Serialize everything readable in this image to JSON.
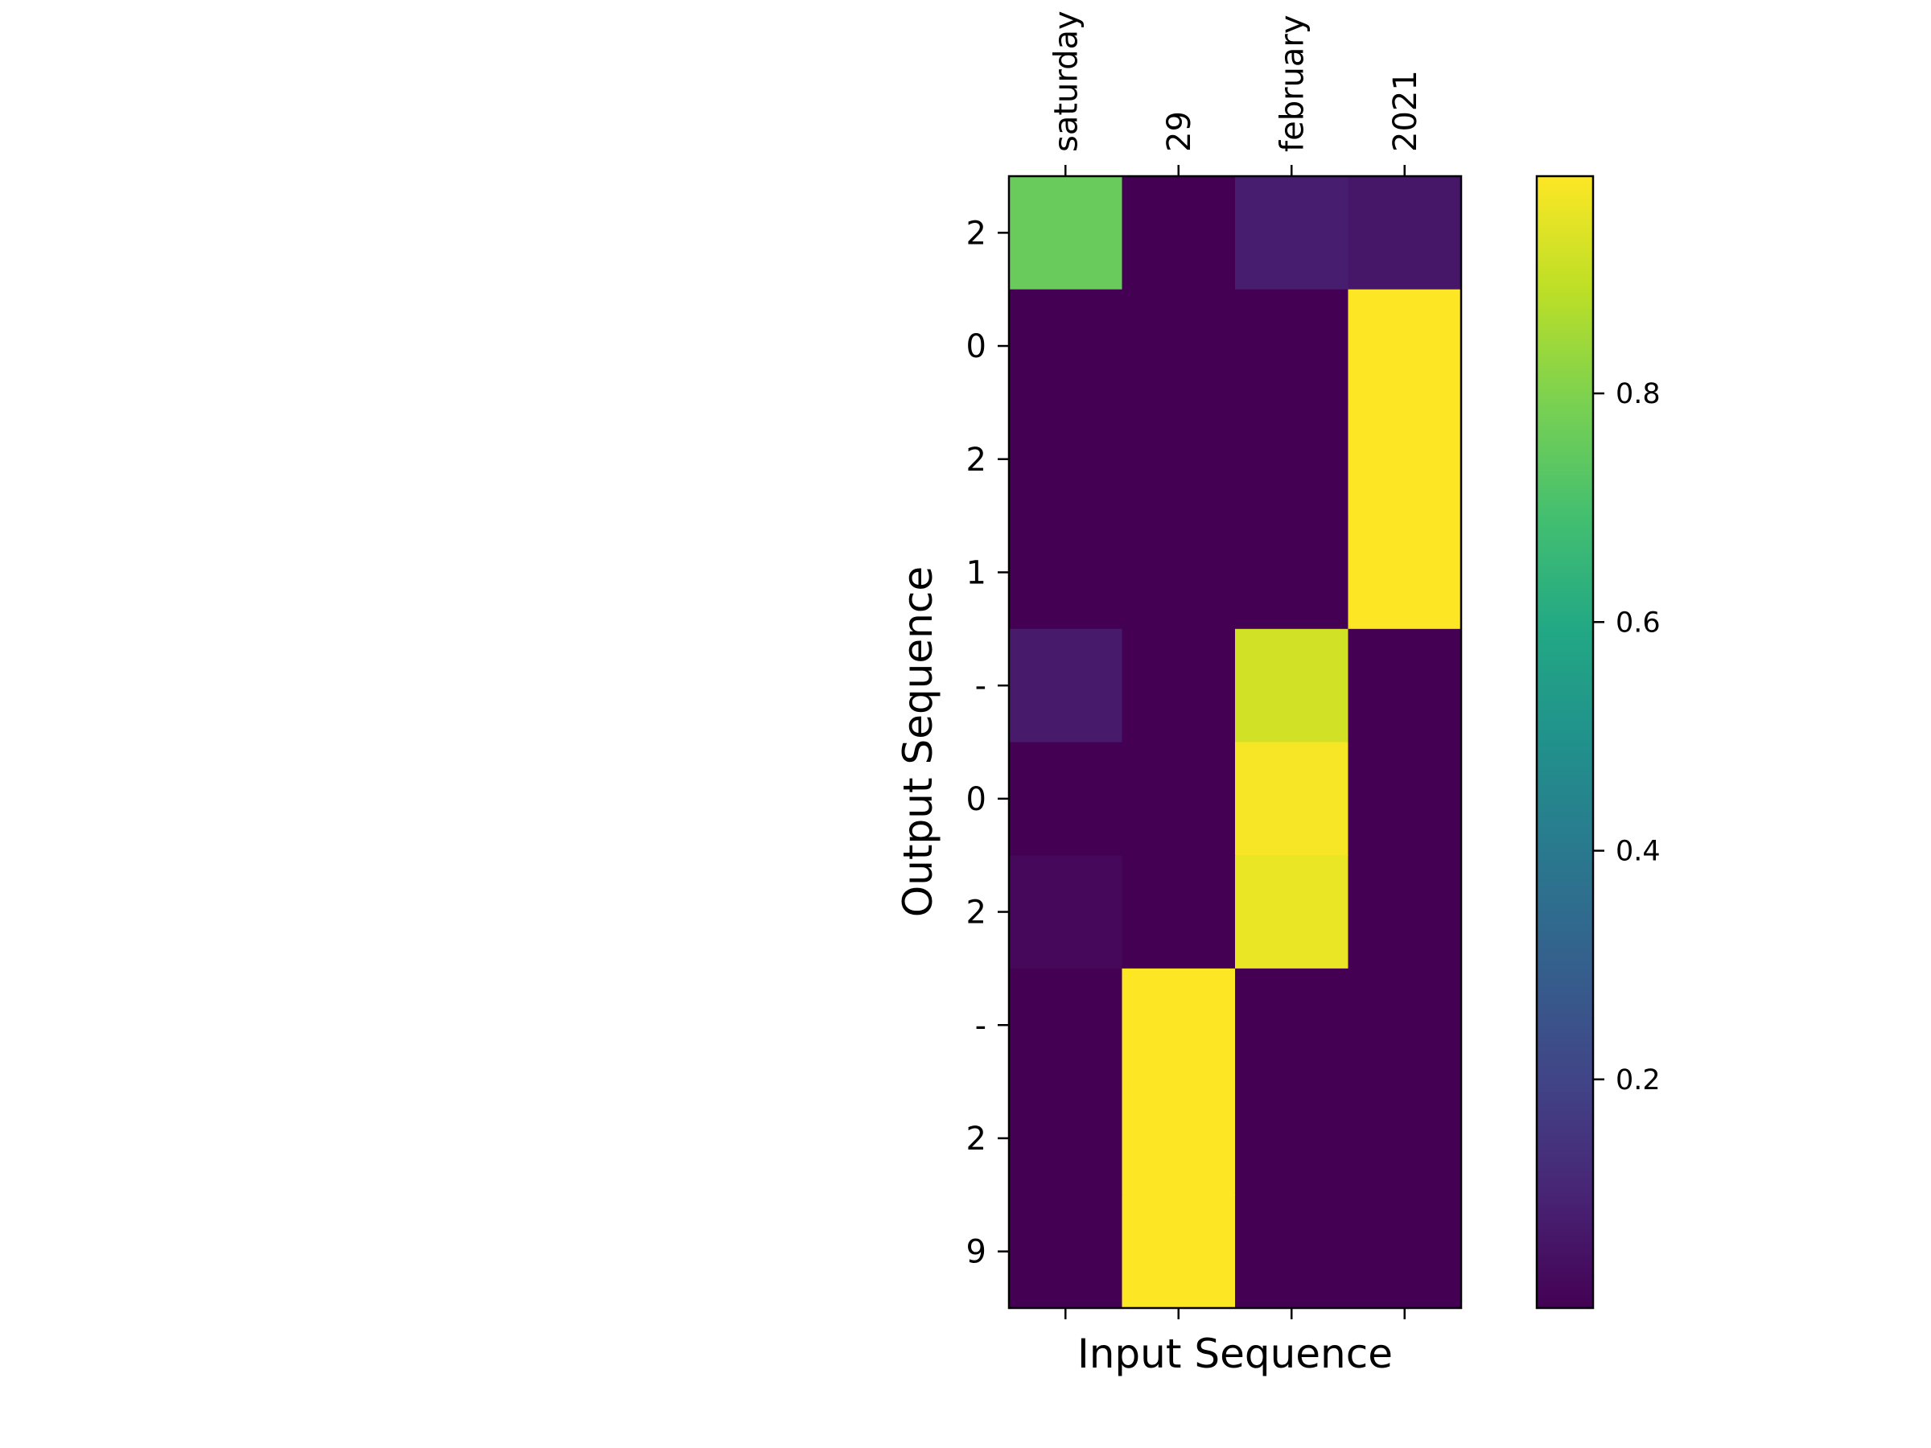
{
  "chart_data": {
    "type": "heatmap",
    "title": "",
    "xlabel": "Input Sequence",
    "ylabel": "Output Sequence",
    "x_categories": [
      "saturday",
      "29",
      "february",
      "2021"
    ],
    "y_categories": [
      "2",
      "0",
      "2",
      "1",
      "-",
      "0",
      "2",
      "-",
      "2",
      "9"
    ],
    "values": [
      [
        0.76,
        0.0,
        0.08,
        0.06
      ],
      [
        0.0,
        0.0,
        0.0,
        0.99
      ],
      [
        0.0,
        0.0,
        0.0,
        0.99
      ],
      [
        0.0,
        0.0,
        0.0,
        0.99
      ],
      [
        0.07,
        0.0,
        0.92,
        0.0
      ],
      [
        0.0,
        0.0,
        0.98,
        0.0
      ],
      [
        0.02,
        0.0,
        0.96,
        0.0
      ],
      [
        0.0,
        0.99,
        0.0,
        0.0
      ],
      [
        0.0,
        0.99,
        0.0,
        0.0
      ],
      [
        0.0,
        0.99,
        0.0,
        0.0
      ]
    ],
    "colormap": "viridis",
    "colorbar": {
      "vmin": 0.0,
      "vmax": 0.99,
      "ticks": [
        0.2,
        0.4,
        0.6,
        0.8
      ],
      "tick_labels": [
        "0.2",
        "0.4",
        "0.6",
        "0.8"
      ]
    },
    "x_tick_rotation": "vertical",
    "x_ticks_position": "top",
    "grid": false,
    "legend": "colorbar-right"
  }
}
